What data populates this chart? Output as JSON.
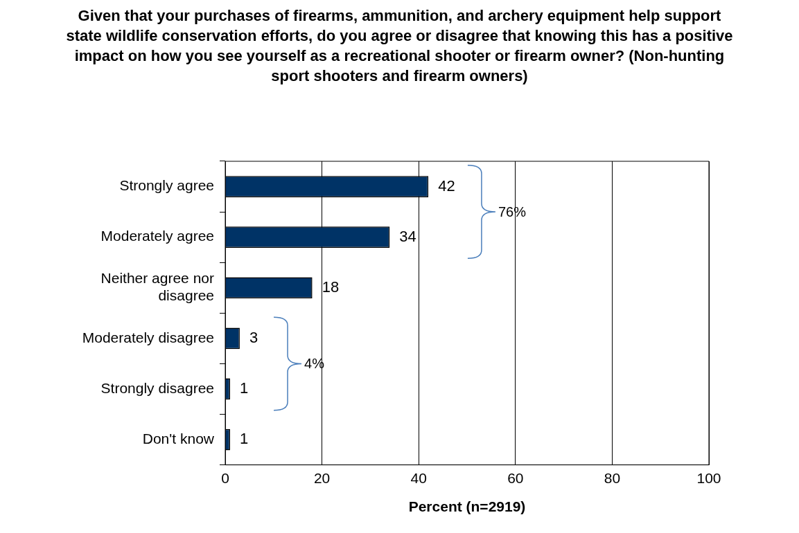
{
  "chart_data": {
    "type": "bar",
    "orientation": "horizontal",
    "title": "Given that your purchases of firearms, ammunition, and archery equipment help support state wildlife conservation efforts, do you agree or disagree that knowing this has a positive impact on how you see yourself as a recreational shooter or firearm owner? (Non-hunting sport shooters and firearm owners)",
    "categories": [
      "Strongly agree",
      "Moderately agree",
      "Neither agree nor disagree",
      "Moderately disagree",
      "Strongly disagree",
      "Don't know"
    ],
    "values": [
      42,
      34,
      18,
      3,
      1,
      1
    ],
    "color": "#003366",
    "data_labels": true,
    "xlabel": "Percent (n=2919)",
    "xlim": [
      0,
      100
    ],
    "xticks": [
      0,
      20,
      40,
      60,
      80,
      100
    ],
    "grid": "x",
    "legend": false,
    "annotations": [
      "76%",
      "4%"
    ]
  }
}
